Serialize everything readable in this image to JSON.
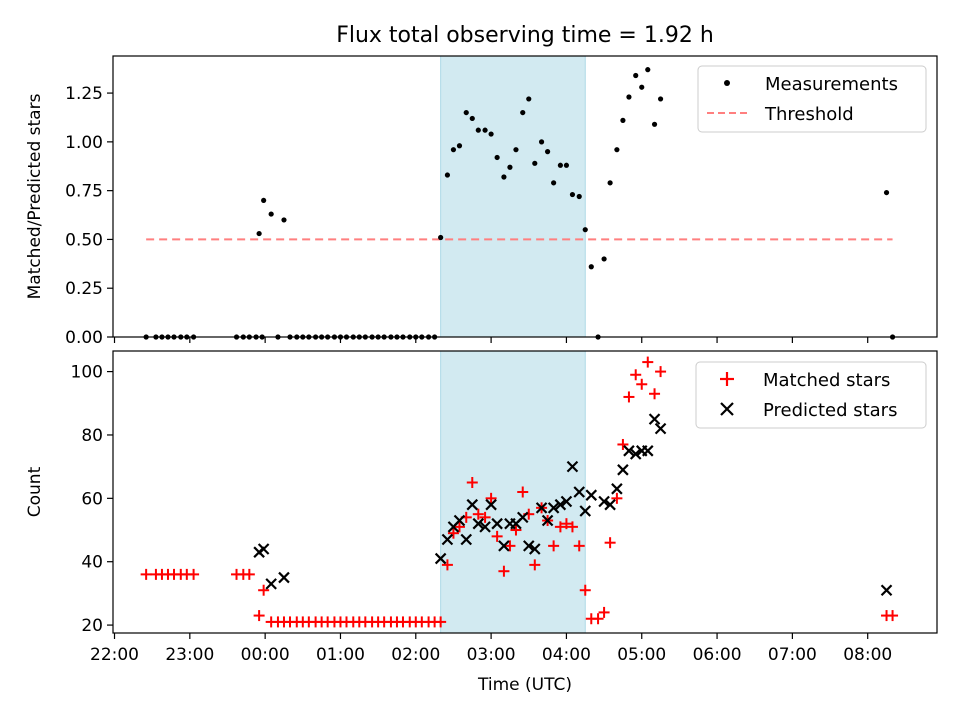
{
  "chart_data": [
    {
      "type": "scatter",
      "title": "Flux total observing time = 1.92 h",
      "ylabel": "Matched/Predicted stars",
      "xlabel": "",
      "x_unit": "hours (relative to 00:00 UTC)",
      "xlim": [
        -2.02,
        8.92
      ],
      "ylim": [
        0,
        1.44
      ],
      "yticks": [
        0.0,
        0.25,
        0.5,
        0.75,
        1.0,
        1.25
      ],
      "ytick_labels": [
        "0.00",
        "0.25",
        "0.50",
        "0.75",
        "1.00",
        "1.25"
      ],
      "shaded_region": {
        "x0": 2.33,
        "x1": 4.25,
        "color": "#add8e6"
      },
      "legend": {
        "location": "upper right",
        "entries": [
          "Measurements",
          "Threshold"
        ]
      },
      "series": [
        {
          "name": "Measurements",
          "marker": "dot",
          "color": "#000000",
          "points": [
            [
              -1.58,
              0.0
            ],
            [
              -1.45,
              0.0
            ],
            [
              -1.37,
              0.0
            ],
            [
              -1.29,
              0.0
            ],
            [
              -1.21,
              0.0
            ],
            [
              -1.12,
              0.0
            ],
            [
              -1.04,
              0.0
            ],
            [
              -0.95,
              0.0
            ],
            [
              -0.38,
              0.0
            ],
            [
              -0.29,
              0.0
            ],
            [
              -0.21,
              0.0
            ],
            [
              -0.12,
              0.0
            ],
            [
              -0.08,
              0.53
            ],
            [
              -0.04,
              0.0
            ],
            [
              -0.02,
              0.7
            ],
            [
              0.08,
              0.63
            ],
            [
              0.17,
              0.0
            ],
            [
              0.25,
              0.6
            ],
            [
              0.33,
              0.0
            ],
            [
              0.42,
              0.0
            ],
            [
              0.5,
              0.0
            ],
            [
              0.58,
              0.0
            ],
            [
              0.67,
              0.0
            ],
            [
              0.75,
              0.0
            ],
            [
              0.83,
              0.0
            ],
            [
              0.92,
              0.0
            ],
            [
              1.0,
              0.0
            ],
            [
              1.08,
              0.0
            ],
            [
              1.17,
              0.0
            ],
            [
              1.25,
              0.0
            ],
            [
              1.33,
              0.0
            ],
            [
              1.42,
              0.0
            ],
            [
              1.5,
              0.0
            ],
            [
              1.58,
              0.0
            ],
            [
              1.67,
              0.0
            ],
            [
              1.75,
              0.0
            ],
            [
              1.83,
              0.0
            ],
            [
              1.92,
              0.0
            ],
            [
              2.0,
              0.0
            ],
            [
              2.08,
              0.0
            ],
            [
              2.17,
              0.0
            ],
            [
              2.25,
              0.0
            ],
            [
              2.33,
              0.51
            ],
            [
              2.42,
              0.83
            ],
            [
              2.5,
              0.96
            ],
            [
              2.58,
              0.98
            ],
            [
              2.67,
              1.15
            ],
            [
              2.75,
              1.12
            ],
            [
              2.83,
              1.06
            ],
            [
              2.92,
              1.06
            ],
            [
              3.0,
              1.04
            ],
            [
              3.08,
              0.92
            ],
            [
              3.17,
              0.82
            ],
            [
              3.25,
              0.87
            ],
            [
              3.33,
              0.96
            ],
            [
              3.42,
              1.15
            ],
            [
              3.5,
              1.22
            ],
            [
              3.58,
              0.89
            ],
            [
              3.67,
              1.0
            ],
            [
              3.75,
              0.95
            ],
            [
              3.83,
              0.79
            ],
            [
              3.92,
              0.88
            ],
            [
              4.0,
              0.88
            ],
            [
              4.08,
              0.73
            ],
            [
              4.17,
              0.72
            ],
            [
              4.25,
              0.55
            ],
            [
              4.33,
              0.36
            ],
            [
              4.42,
              0.0
            ],
            [
              4.5,
              0.4
            ],
            [
              4.58,
              0.79
            ],
            [
              4.67,
              0.96
            ],
            [
              4.75,
              1.11
            ],
            [
              4.83,
              1.23
            ],
            [
              4.92,
              1.34
            ],
            [
              5.0,
              1.28
            ],
            [
              5.08,
              1.37
            ],
            [
              5.17,
              1.09
            ],
            [
              5.25,
              1.22
            ],
            [
              8.25,
              0.74
            ],
            [
              8.33,
              0.0
            ]
          ]
        },
        {
          "name": "Threshold",
          "style": "dashed",
          "color": "#ff7f7f",
          "line": [
            [
              -1.58,
              0.5
            ],
            [
              8.33,
              0.5
            ]
          ]
        }
      ]
    },
    {
      "type": "scatter",
      "title": "",
      "xlabel": "Time (UTC)",
      "ylabel": "Count",
      "x_unit": "hours (relative to 00:00 UTC)",
      "xlim": [
        -2.02,
        8.92
      ],
      "ylim": [
        17.5,
        106.5
      ],
      "yticks": [
        20,
        40,
        60,
        80,
        100
      ],
      "ytick_labels": [
        "20",
        "40",
        "60",
        "80",
        "100"
      ],
      "xticks": [
        -2,
        -1,
        0,
        1,
        2,
        3,
        4,
        5,
        6,
        7,
        8
      ],
      "xtick_labels": [
        "22:00",
        "23:00",
        "00:00",
        "01:00",
        "02:00",
        "03:00",
        "04:00",
        "05:00",
        "06:00",
        "07:00",
        "08:00"
      ],
      "shaded_region": {
        "x0": 2.33,
        "x1": 4.25,
        "color": "#add8e6"
      },
      "legend": {
        "location": "upper right",
        "entries": [
          "Matched stars",
          "Predicted stars"
        ]
      },
      "series": [
        {
          "name": "Matched stars",
          "marker": "plus",
          "color": "#ff0000",
          "points": [
            [
              -1.58,
              36
            ],
            [
              -1.45,
              36
            ],
            [
              -1.37,
              36
            ],
            [
              -1.29,
              36
            ],
            [
              -1.21,
              36
            ],
            [
              -1.12,
              36
            ],
            [
              -1.04,
              36
            ],
            [
              -0.95,
              36
            ],
            [
              -0.38,
              36
            ],
            [
              -0.29,
              36
            ],
            [
              -0.21,
              36
            ],
            [
              -0.08,
              23
            ],
            [
              -0.02,
              31
            ],
            [
              0.08,
              21
            ],
            [
              0.17,
              21
            ],
            [
              0.25,
              21
            ],
            [
              0.33,
              21
            ],
            [
              0.42,
              21
            ],
            [
              0.5,
              21
            ],
            [
              0.58,
              21
            ],
            [
              0.67,
              21
            ],
            [
              0.75,
              21
            ],
            [
              0.83,
              21
            ],
            [
              0.92,
              21
            ],
            [
              1.0,
              21
            ],
            [
              1.08,
              21
            ],
            [
              1.17,
              21
            ],
            [
              1.25,
              21
            ],
            [
              1.33,
              21
            ],
            [
              1.42,
              21
            ],
            [
              1.5,
              21
            ],
            [
              1.58,
              21
            ],
            [
              1.67,
              21
            ],
            [
              1.75,
              21
            ],
            [
              1.83,
              21
            ],
            [
              1.92,
              21
            ],
            [
              2.0,
              21
            ],
            [
              2.08,
              21
            ],
            [
              2.17,
              21
            ],
            [
              2.25,
              21
            ],
            [
              2.33,
              21
            ],
            [
              2.42,
              39
            ],
            [
              2.5,
              49
            ],
            [
              2.58,
              51
            ],
            [
              2.67,
              54
            ],
            [
              2.75,
              65
            ],
            [
              2.83,
              55
            ],
            [
              2.92,
              54
            ],
            [
              3.0,
              60
            ],
            [
              3.08,
              48
            ],
            [
              3.17,
              37
            ],
            [
              3.25,
              45
            ],
            [
              3.33,
              50
            ],
            [
              3.42,
              62
            ],
            [
              3.5,
              55
            ],
            [
              3.58,
              39
            ],
            [
              3.67,
              57
            ],
            [
              3.75,
              53
            ],
            [
              3.83,
              45
            ],
            [
              3.92,
              51
            ],
            [
              4.0,
              52
            ],
            [
              4.08,
              51
            ],
            [
              4.17,
              45
            ],
            [
              4.25,
              31
            ],
            [
              4.33,
              22
            ],
            [
              4.42,
              22
            ],
            [
              4.5,
              24
            ],
            [
              4.58,
              46
            ],
            [
              4.67,
              60
            ],
            [
              4.75,
              77
            ],
            [
              4.83,
              92
            ],
            [
              4.92,
              99
            ],
            [
              5.0,
              96
            ],
            [
              5.08,
              103
            ],
            [
              5.17,
              93
            ],
            [
              5.25,
              100
            ],
            [
              8.25,
              23
            ],
            [
              8.33,
              23
            ]
          ]
        },
        {
          "name": "Predicted stars",
          "marker": "x",
          "color": "#000000",
          "points": [
            [
              -0.08,
              43
            ],
            [
              -0.02,
              44
            ],
            [
              0.08,
              33
            ],
            [
              0.25,
              35
            ],
            [
              2.33,
              41
            ],
            [
              2.42,
              47
            ],
            [
              2.5,
              51
            ],
            [
              2.58,
              53
            ],
            [
              2.67,
              47
            ],
            [
              2.75,
              58
            ],
            [
              2.83,
              52
            ],
            [
              2.92,
              51
            ],
            [
              3.0,
              58
            ],
            [
              3.08,
              52
            ],
            [
              3.17,
              45
            ],
            [
              3.25,
              52
            ],
            [
              3.33,
              52
            ],
            [
              3.42,
              54
            ],
            [
              3.5,
              45
            ],
            [
              3.58,
              44
            ],
            [
              3.67,
              57
            ],
            [
              3.75,
              53
            ],
            [
              3.83,
              57
            ],
            [
              3.92,
              58
            ],
            [
              4.0,
              59
            ],
            [
              4.08,
              70
            ],
            [
              4.17,
              62
            ],
            [
              4.25,
              56
            ],
            [
              4.33,
              61
            ],
            [
              4.5,
              59
            ],
            [
              4.58,
              58
            ],
            [
              4.67,
              63
            ],
            [
              4.75,
              69
            ],
            [
              4.83,
              75
            ],
            [
              4.92,
              74
            ],
            [
              5.0,
              75
            ],
            [
              5.08,
              75
            ],
            [
              5.17,
              85
            ],
            [
              5.25,
              82
            ],
            [
              8.25,
              31
            ]
          ]
        }
      ]
    }
  ]
}
